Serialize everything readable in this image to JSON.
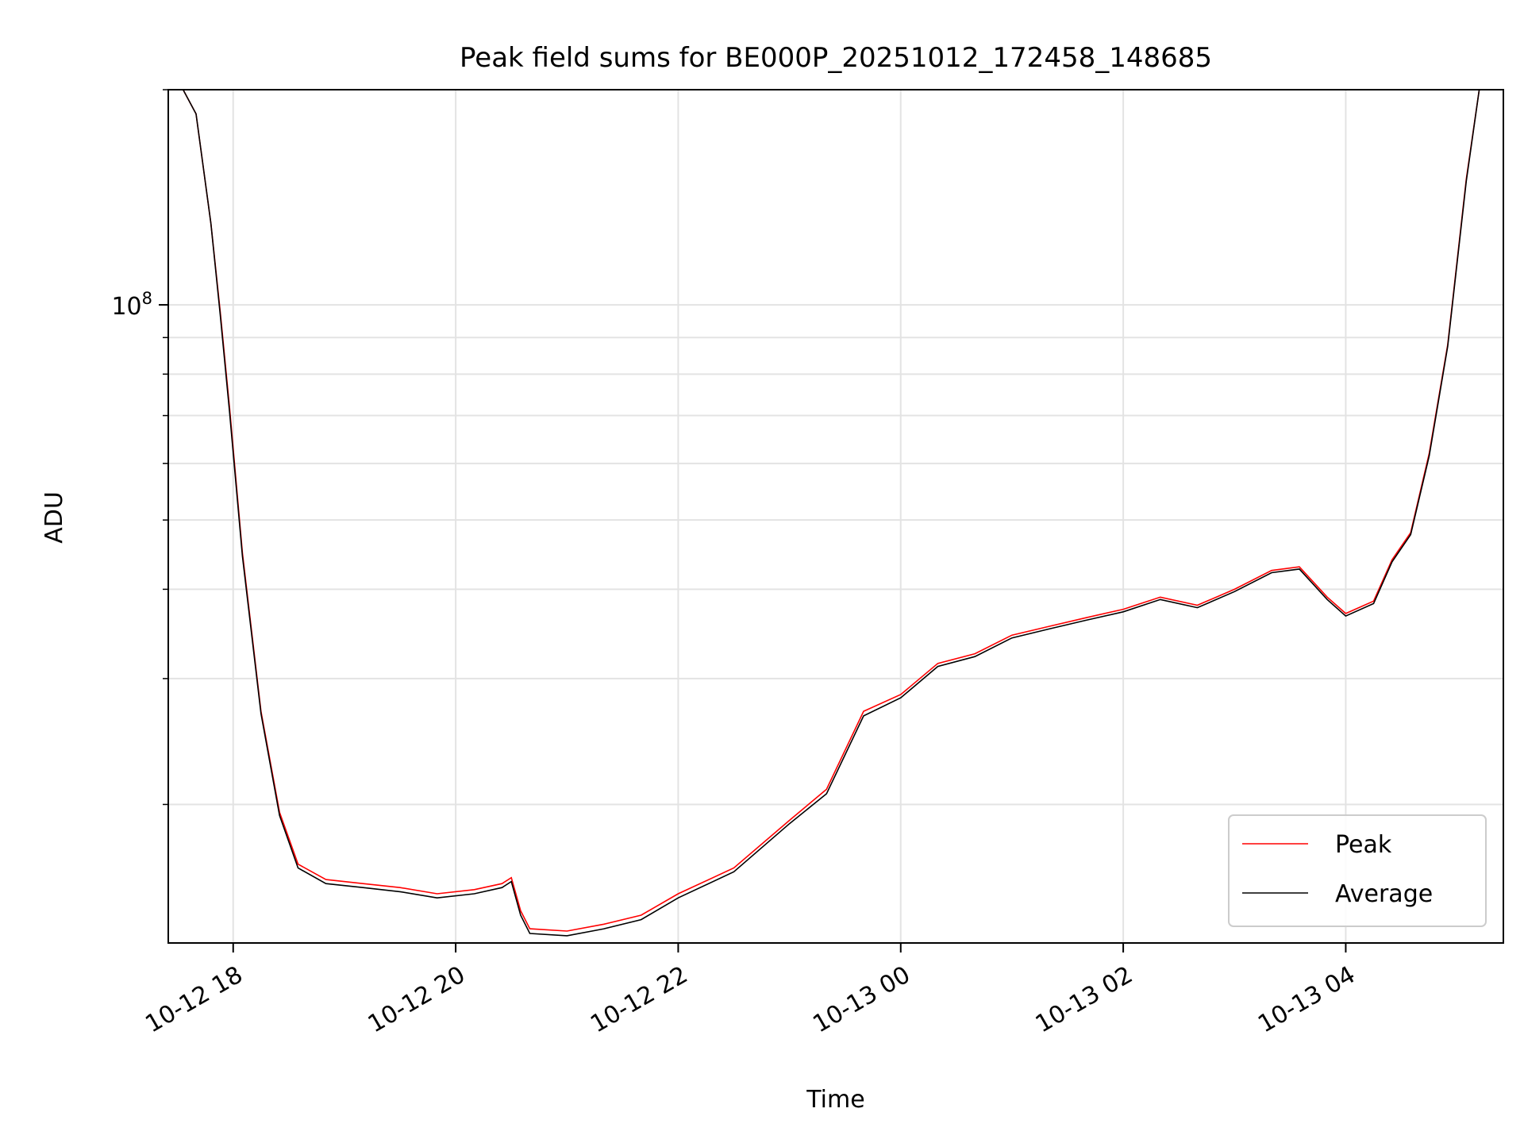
{
  "chart_data": {
    "type": "line",
    "title": "Peak field sums for BE000P_20251012_172458_148685",
    "xlabel": "Time",
    "ylabel": "ADU",
    "yscale": "log",
    "ylim": [
      12800000,
      200000000
    ],
    "xlim": [
      "2025-10-12 17:25",
      "2025-10-13 05:25"
    ],
    "x_ticks": [
      "10-12 18",
      "10-12 20",
      "10-12 22",
      "10-13 00",
      "10-13 02",
      "10-13 04"
    ],
    "y_ticks": [
      {
        "base": "10",
        "exponent": "8",
        "value": 100000000
      }
    ],
    "grid": true,
    "legend_position": "lower right",
    "colors": {
      "Peak": "#ff0000",
      "Average": "#000000"
    },
    "series": [
      {
        "name": "Peak",
        "points": [
          [
            "2025-10-12 17:33",
            200000000
          ],
          [
            "2025-10-12 17:40",
            185000000
          ],
          [
            "2025-10-12 17:48",
            130000000
          ],
          [
            "2025-10-12 17:53",
            98000000
          ],
          [
            "2025-10-12 17:58",
            72000000
          ],
          [
            "2025-10-12 18:05",
            45000000
          ],
          [
            "2025-10-12 18:15",
            27000000
          ],
          [
            "2025-10-12 18:25",
            19500000
          ],
          [
            "2025-10-12 18:35",
            16500000
          ],
          [
            "2025-10-12 18:50",
            15700000
          ],
          [
            "2025-10-12 19:10",
            15500000
          ],
          [
            "2025-10-12 19:30",
            15300000
          ],
          [
            "2025-10-12 19:50",
            15000000
          ],
          [
            "2025-10-12 20:10",
            15200000
          ],
          [
            "2025-10-12 20:25",
            15500000
          ],
          [
            "2025-10-12 20:30",
            15800000
          ],
          [
            "2025-10-12 20:35",
            14200000
          ],
          [
            "2025-10-12 20:40",
            13400000
          ],
          [
            "2025-10-12 21:00",
            13300000
          ],
          [
            "2025-10-12 21:20",
            13600000
          ],
          [
            "2025-10-12 21:40",
            14000000
          ],
          [
            "2025-10-12 22:00",
            15000000
          ],
          [
            "2025-10-12 22:30",
            16300000
          ],
          [
            "2025-10-12 23:00",
            19000000
          ],
          [
            "2025-10-12 23:20",
            21000000
          ],
          [
            "2025-10-12 23:40",
            27000000
          ],
          [
            "2025-10-13 00:00",
            28500000
          ],
          [
            "2025-10-13 00:20",
            31500000
          ],
          [
            "2025-10-13 00:40",
            32500000
          ],
          [
            "2025-10-13 01:00",
            34500000
          ],
          [
            "2025-10-13 01:20",
            35500000
          ],
          [
            "2025-10-13 01:40",
            36500000
          ],
          [
            "2025-10-13 02:00",
            37500000
          ],
          [
            "2025-10-13 02:20",
            39000000
          ],
          [
            "2025-10-13 02:40",
            38000000
          ],
          [
            "2025-10-13 03:00",
            40000000
          ],
          [
            "2025-10-13 03:20",
            42500000
          ],
          [
            "2025-10-13 03:35",
            43000000
          ],
          [
            "2025-10-13 03:50",
            39000000
          ],
          [
            "2025-10-13 04:00",
            37000000
          ],
          [
            "2025-10-13 04:15",
            38500000
          ],
          [
            "2025-10-13 04:25",
            44000000
          ],
          [
            "2025-10-13 04:35",
            48000000
          ],
          [
            "2025-10-13 04:45",
            62000000
          ],
          [
            "2025-10-13 04:55",
            88000000
          ],
          [
            "2025-10-13 05:05",
            150000000
          ],
          [
            "2025-10-13 05:12",
            200000000
          ]
        ]
      },
      {
        "name": "Average",
        "points": [
          [
            "2025-10-12 17:33",
            200000000
          ],
          [
            "2025-10-12 17:40",
            185000000
          ],
          [
            "2025-10-12 17:48",
            130000000
          ],
          [
            "2025-10-12 17:53",
            97000000
          ],
          [
            "2025-10-12 17:58",
            71000000
          ],
          [
            "2025-10-12 18:05",
            44500000
          ],
          [
            "2025-10-12 18:15",
            26800000
          ],
          [
            "2025-10-12 18:25",
            19300000
          ],
          [
            "2025-10-12 18:35",
            16300000
          ],
          [
            "2025-10-12 18:50",
            15500000
          ],
          [
            "2025-10-12 19:10",
            15300000
          ],
          [
            "2025-10-12 19:30",
            15100000
          ],
          [
            "2025-10-12 19:50",
            14800000
          ],
          [
            "2025-10-12 20:10",
            15000000
          ],
          [
            "2025-10-12 20:25",
            15300000
          ],
          [
            "2025-10-12 20:30",
            15600000
          ],
          [
            "2025-10-12 20:35",
            14000000
          ],
          [
            "2025-10-12 20:40",
            13200000
          ],
          [
            "2025-10-12 21:00",
            13100000
          ],
          [
            "2025-10-12 21:20",
            13400000
          ],
          [
            "2025-10-12 21:40",
            13800000
          ],
          [
            "2025-10-12 22:00",
            14800000
          ],
          [
            "2025-10-12 22:30",
            16100000
          ],
          [
            "2025-10-12 23:00",
            18800000
          ],
          [
            "2025-10-12 23:20",
            20700000
          ],
          [
            "2025-10-12 23:40",
            26600000
          ],
          [
            "2025-10-13 00:00",
            28200000
          ],
          [
            "2025-10-13 00:20",
            31200000
          ],
          [
            "2025-10-13 00:40",
            32200000
          ],
          [
            "2025-10-13 01:00",
            34200000
          ],
          [
            "2025-10-13 01:20",
            35200000
          ],
          [
            "2025-10-13 01:40",
            36200000
          ],
          [
            "2025-10-13 02:00",
            37200000
          ],
          [
            "2025-10-13 02:20",
            38700000
          ],
          [
            "2025-10-13 02:40",
            37700000
          ],
          [
            "2025-10-13 03:00",
            39700000
          ],
          [
            "2025-10-13 03:20",
            42200000
          ],
          [
            "2025-10-13 03:35",
            42700000
          ],
          [
            "2025-10-13 03:50",
            38700000
          ],
          [
            "2025-10-13 04:00",
            36700000
          ],
          [
            "2025-10-13 04:15",
            38200000
          ],
          [
            "2025-10-13 04:25",
            43700000
          ],
          [
            "2025-10-13 04:35",
            47700000
          ],
          [
            "2025-10-13 04:45",
            61500000
          ],
          [
            "2025-10-13 04:55",
            87500000
          ],
          [
            "2025-10-13 05:05",
            149000000
          ],
          [
            "2025-10-13 05:12",
            200000000
          ]
        ]
      }
    ]
  }
}
